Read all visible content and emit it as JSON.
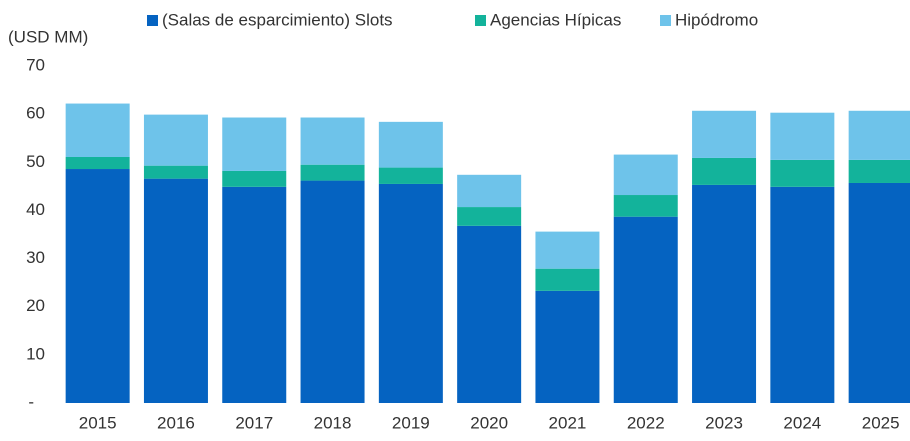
{
  "chart_data": {
    "type": "stacked_bar",
    "y_label": "(USD MM)",
    "categories": [
      "2015",
      "2016",
      "2017",
      "2018",
      "2019",
      "2020",
      "2021",
      "2022",
      "2023",
      "2024",
      "2025"
    ],
    "series": [
      {
        "name": "(Salas de esparcimiento) Slots",
        "color": "#0563c1",
        "values": [
          48.6,
          46.6,
          44.9,
          46.2,
          45.5,
          36.8,
          23.3,
          38.7,
          45.3,
          44.9,
          45.7
        ]
      },
      {
        "name": "Agencias Hípicas",
        "color": "#13b39b",
        "values": [
          2.5,
          2.7,
          3.3,
          3.3,
          3.4,
          3.9,
          4.6,
          4.5,
          5.6,
          5.6,
          4.8
        ]
      },
      {
        "name": "Hipódromo",
        "color": "#6ec3ea",
        "values": [
          11.1,
          10.6,
          11.1,
          9.8,
          9.5,
          6.7,
          7.7,
          8.4,
          9.8,
          9.8,
          10.2
        ]
      }
    ],
    "ylim": [
      0,
      70
    ],
    "yticks": [
      {
        "value": 0,
        "label": "-"
      },
      10,
      20,
      30,
      40,
      50,
      60,
      70
    ],
    "legend": "top"
  }
}
